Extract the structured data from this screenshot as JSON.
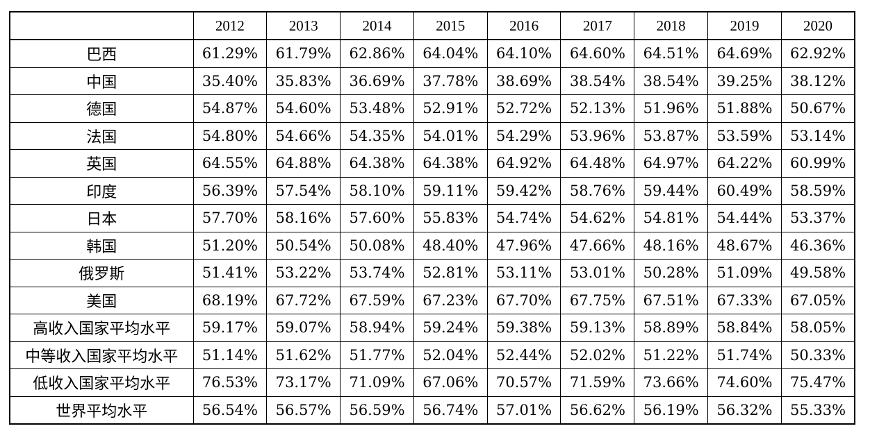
{
  "table": {
    "columns": [
      "2012",
      "2013",
      "2014",
      "2015",
      "2016",
      "2017",
      "2018",
      "2019",
      "2020"
    ],
    "rows": [
      {
        "label": "巴西",
        "values": [
          "61.29%",
          "61.79%",
          "62.86%",
          "64.04%",
          "64.10%",
          "64.60%",
          "64.51%",
          "64.69%",
          "62.92%"
        ]
      },
      {
        "label": "中国",
        "values": [
          "35.40%",
          "35.83%",
          "36.69%",
          "37.78%",
          "38.69%",
          "38.54%",
          "38.54%",
          "39.25%",
          "38.12%"
        ]
      },
      {
        "label": "德国",
        "values": [
          "54.87%",
          "54.60%",
          "53.48%",
          "52.91%",
          "52.72%",
          "52.13%",
          "51.96%",
          "51.88%",
          "50.67%"
        ]
      },
      {
        "label": "法国",
        "values": [
          "54.80%",
          "54.66%",
          "54.35%",
          "54.01%",
          "54.29%",
          "53.96%",
          "53.87%",
          "53.59%",
          "53.14%"
        ]
      },
      {
        "label": "英国",
        "values": [
          "64.55%",
          "64.88%",
          "64.38%",
          "64.38%",
          "64.92%",
          "64.48%",
          "64.97%",
          "64.22%",
          "60.99%"
        ]
      },
      {
        "label": "印度",
        "values": [
          "56.39%",
          "57.54%",
          "58.10%",
          "59.11%",
          "59.42%",
          "58.76%",
          "59.44%",
          "60.49%",
          "58.59%"
        ]
      },
      {
        "label": "日本",
        "values": [
          "57.70%",
          "58.16%",
          "57.60%",
          "55.83%",
          "54.74%",
          "54.62%",
          "54.81%",
          "54.44%",
          "53.37%"
        ]
      },
      {
        "label": "韩国",
        "values": [
          "51.20%",
          "50.54%",
          "50.08%",
          "48.40%",
          "47.96%",
          "47.66%",
          "48.16%",
          "48.67%",
          "46.36%"
        ]
      },
      {
        "label": "俄罗斯",
        "values": [
          "51.41%",
          "53.22%",
          "53.74%",
          "52.81%",
          "53.11%",
          "53.01%",
          "50.28%",
          "51.09%",
          "49.58%"
        ]
      },
      {
        "label": "美国",
        "values": [
          "68.19%",
          "67.72%",
          "67.59%",
          "67.23%",
          "67.70%",
          "67.75%",
          "67.51%",
          "67.33%",
          "67.05%"
        ]
      },
      {
        "label": "高收入国家平均水平",
        "values": [
          "59.17%",
          "59.07%",
          "58.94%",
          "59.24%",
          "59.38%",
          "59.13%",
          "58.89%",
          "58.84%",
          "58.05%"
        ]
      },
      {
        "label": "中等收入国家平均水平",
        "values": [
          "51.14%",
          "51.62%",
          "51.77%",
          "52.04%",
          "52.44%",
          "52.02%",
          "51.22%",
          "51.74%",
          "50.33%"
        ]
      },
      {
        "label": "低收入国家平均水平",
        "values": [
          "76.53%",
          "73.17%",
          "71.09%",
          "67.06%",
          "70.57%",
          "71.59%",
          "73.66%",
          "74.60%",
          "75.47%"
        ]
      },
      {
        "label": "世界平均水平",
        "values": [
          "56.54%",
          "56.57%",
          "56.59%",
          "56.74%",
          "57.01%",
          "56.62%",
          "56.19%",
          "56.32%",
          "55.33%"
        ]
      }
    ]
  }
}
